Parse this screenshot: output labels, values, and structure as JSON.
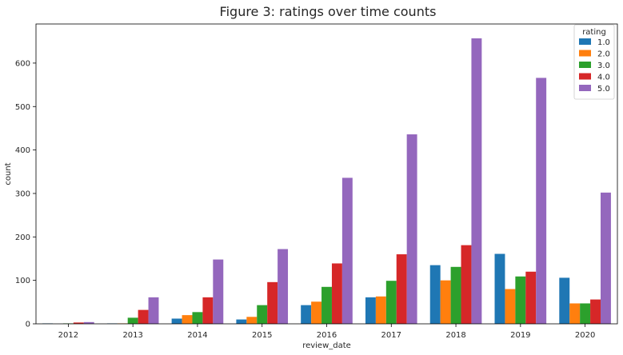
{
  "chart_data": {
    "type": "bar",
    "title": "Figure 3: ratings over time counts",
    "xlabel": "review_date",
    "ylabel": "count",
    "categories": [
      "2012",
      "2013",
      "2014",
      "2015",
      "2016",
      "2017",
      "2018",
      "2019",
      "2020"
    ],
    "ylim": [
      0,
      690
    ],
    "yticks": [
      0,
      100,
      200,
      300,
      400,
      500,
      600
    ],
    "grid": false,
    "legend": {
      "title": "rating",
      "placement": "top-right"
    },
    "series": [
      {
        "name": "1.0",
        "color": "#1f77b4",
        "values": [
          1,
          1,
          12,
          10,
          43,
          61,
          135,
          161,
          106
        ]
      },
      {
        "name": "2.0",
        "color": "#ff7f0e",
        "values": [
          0,
          1,
          20,
          16,
          51,
          63,
          100,
          80,
          47
        ]
      },
      {
        "name": "3.0",
        "color": "#2ca02c",
        "values": [
          1,
          14,
          27,
          43,
          85,
          99,
          131,
          109,
          47
        ]
      },
      {
        "name": "4.0",
        "color": "#d62728",
        "values": [
          3,
          32,
          61,
          96,
          139,
          160,
          181,
          120,
          56
        ]
      },
      {
        "name": "5.0",
        "color": "#9467bd",
        "values": [
          4,
          61,
          148,
          172,
          336,
          436,
          657,
          566,
          302
        ]
      }
    ]
  }
}
